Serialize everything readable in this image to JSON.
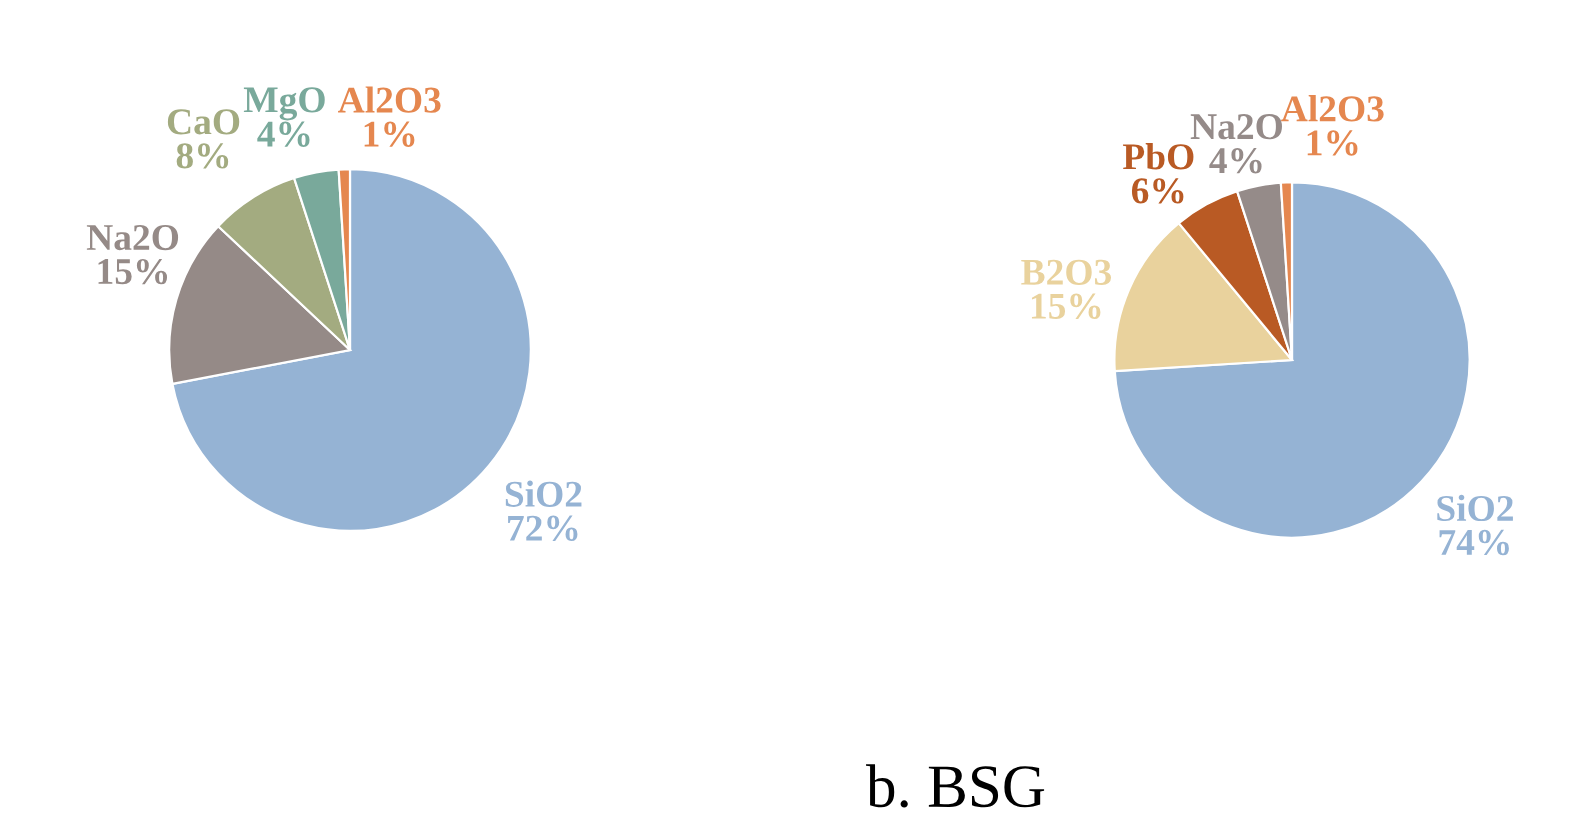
{
  "chart_data": [
    {
      "type": "pie",
      "categories": [
        "SiO2",
        "Na2O",
        "CaO",
        "MgO",
        "Al2O3"
      ],
      "values": [
        72,
        15,
        8,
        4,
        1
      ],
      "value_labels": [
        "72%",
        "15%",
        "8%",
        "4%",
        "1%"
      ],
      "colors": [
        "#95b3d4",
        "#958a87",
        "#a3ab80",
        "#79a99b",
        "#e5874f"
      ]
    },
    {
      "type": "pie",
      "categories": [
        "SiO2",
        "B2O3",
        "PbO",
        "Na2O",
        "Al2O3"
      ],
      "values": [
        74,
        15,
        6,
        4,
        1
      ],
      "value_labels": [
        "74%",
        "15%",
        "6%",
        "4%",
        "1%"
      ],
      "colors": [
        "#95b3d4",
        "#e9d29d",
        "#b95a24",
        "#958b89",
        "#e5874f"
      ],
      "annotations": [
        "b. BSG"
      ]
    }
  ]
}
